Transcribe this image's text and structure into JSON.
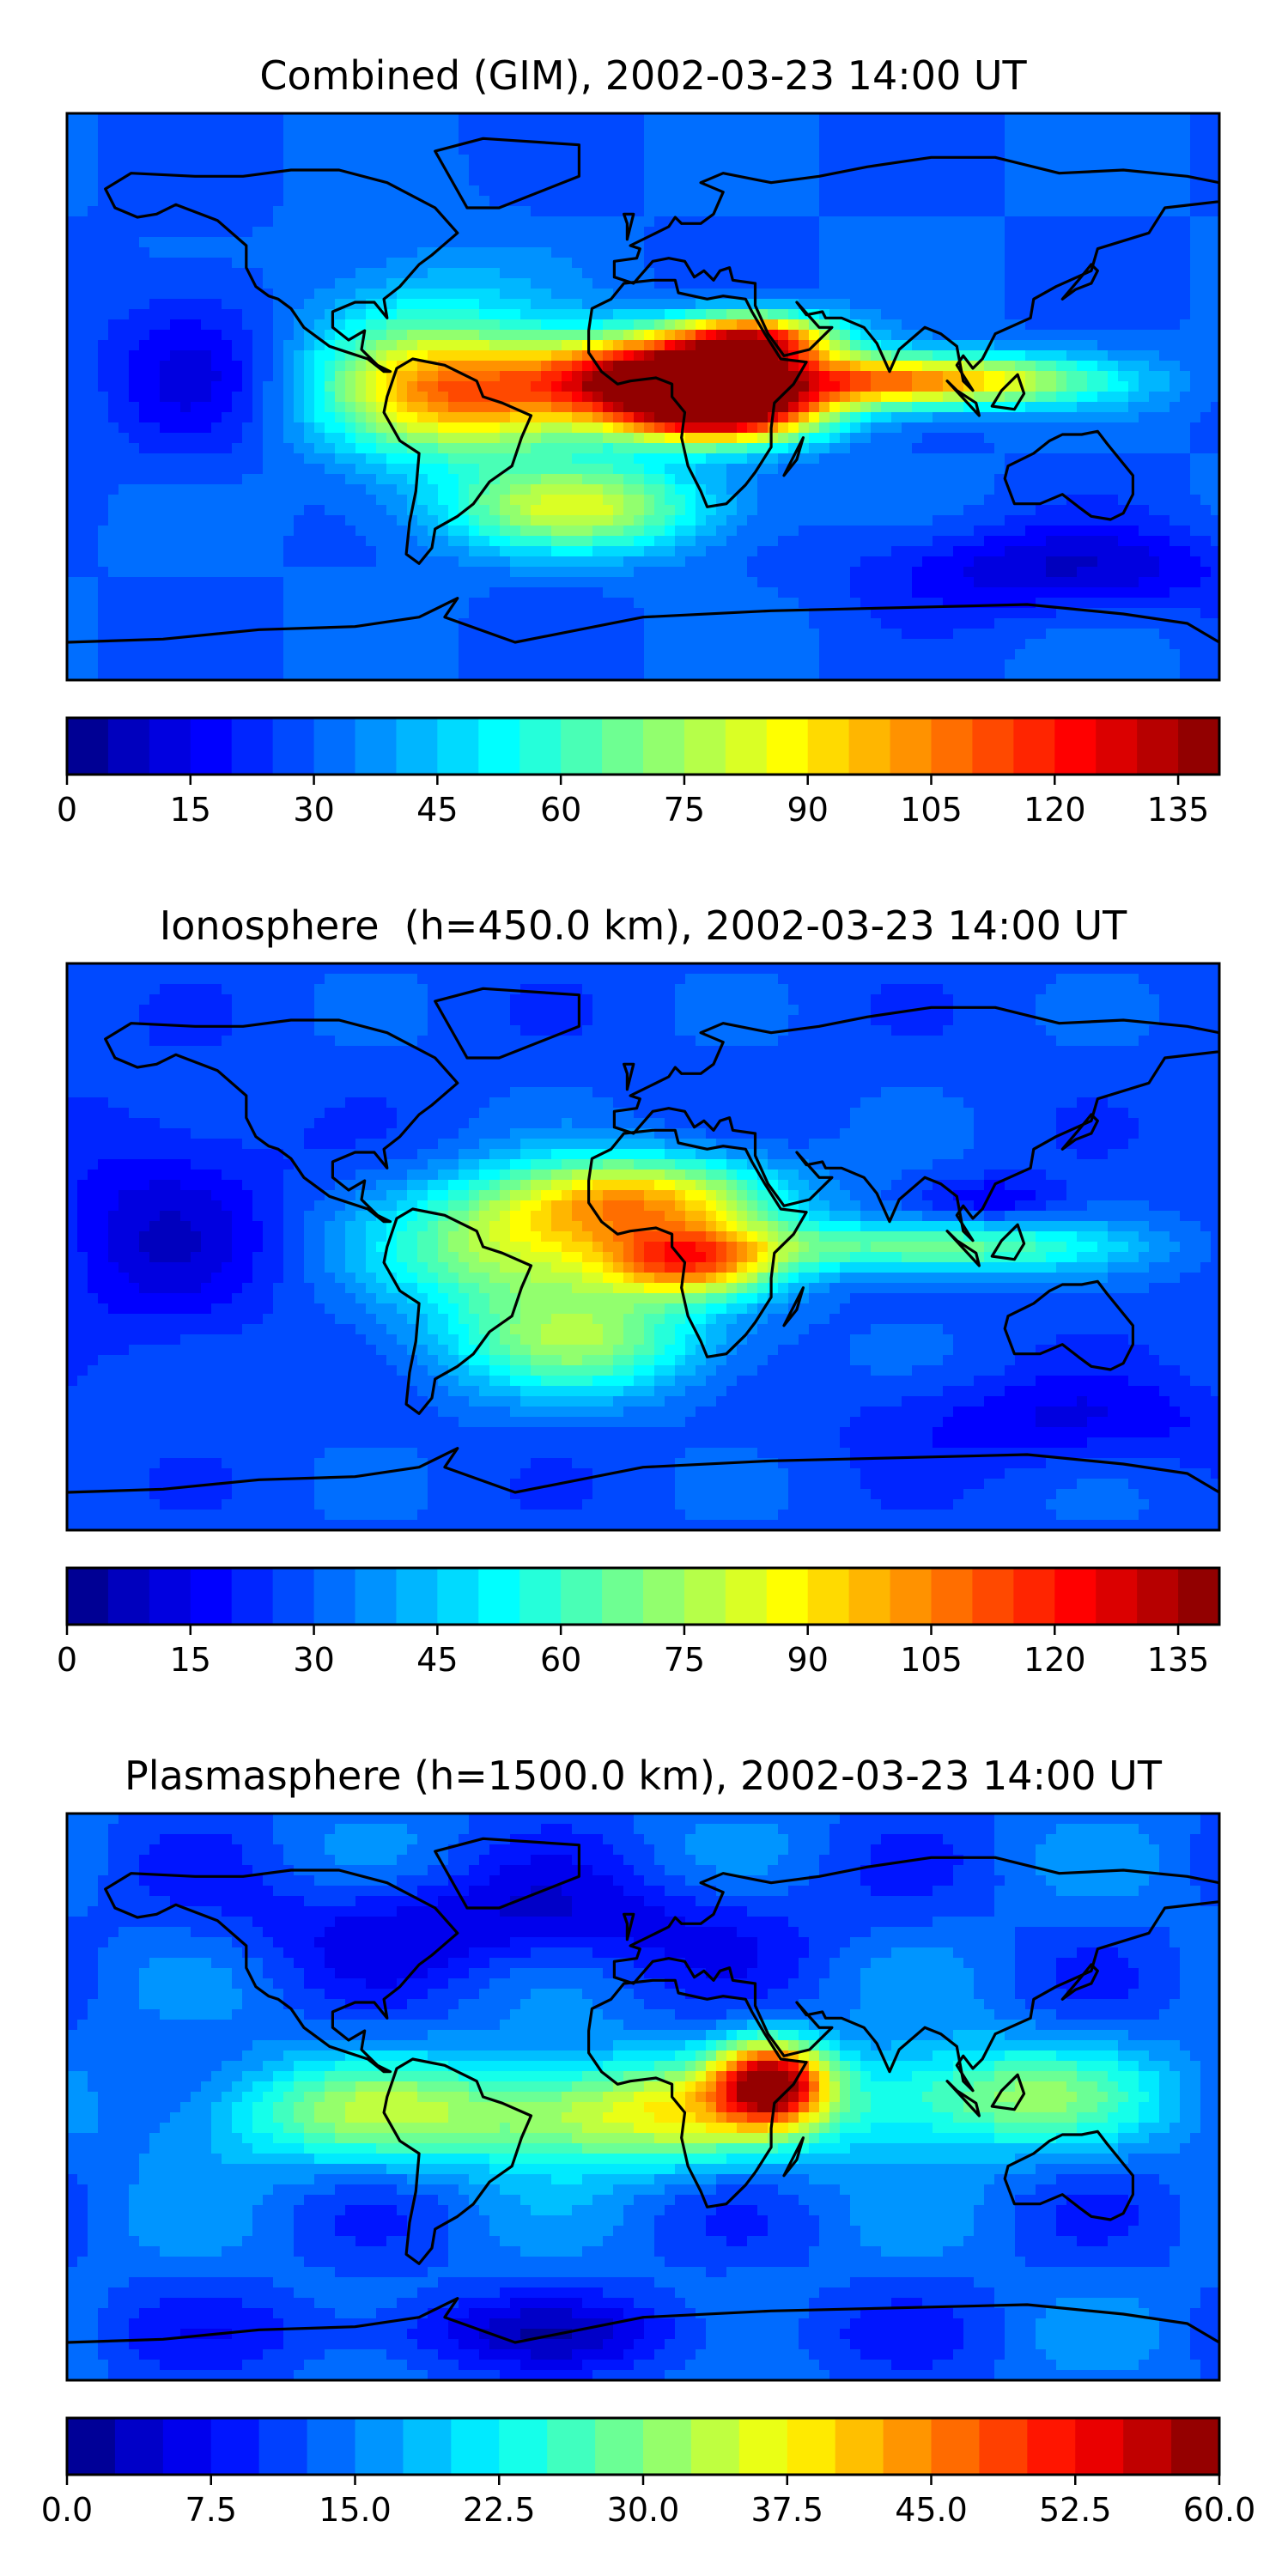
{
  "figure": {
    "colormap": [
      "#00007f",
      "#0000c8",
      "#0000ff",
      "#0040ff",
      "#0080ff",
      "#00bfff",
      "#00ffff",
      "#40ffbf",
      "#80ff80",
      "#bfff40",
      "#ffff00",
      "#ffbf00",
      "#ff8000",
      "#ff4000",
      "#ff0000",
      "#c00000",
      "#7f0000"
    ]
  },
  "chart_data": [
    {
      "type": "heatmap",
      "title": "Combined (GIM), 2002-03-23 14:00 UT",
      "xlim": [
        -180,
        180
      ],
      "ylim": [
        -90,
        90
      ],
      "colorbar": {
        "range": [
          0,
          140
        ],
        "levels": 28,
        "tick_values": [
          0,
          15,
          30,
          45,
          60,
          75,
          90,
          105,
          120,
          135
        ],
        "tick_labels": [
          "0",
          "15",
          "30",
          "45",
          "60",
          "75",
          "90",
          "105",
          "120",
          "135"
        ]
      },
      "background_value": 30,
      "features": [
        {
          "lon": 5,
          "lat": 7,
          "value": 125,
          "spread_lon": 25,
          "spread_lat": 9
        },
        {
          "lon": 35,
          "lat": 18,
          "value": 115,
          "spread_lon": 18,
          "spread_lat": 6
        },
        {
          "lon": 25,
          "lat": -5,
          "value": 130,
          "spread_lon": 22,
          "spread_lat": 7
        },
        {
          "lon": 80,
          "lat": 5,
          "value": 110,
          "spread_lon": 40,
          "spread_lat": 6
        },
        {
          "lon": -45,
          "lat": 0,
          "value": 85,
          "spread_lon": 30,
          "spread_lat": 12
        },
        {
          "lon": -20,
          "lat": -35,
          "value": 80,
          "spread_lon": 30,
          "spread_lat": 10
        },
        {
          "lon": -70,
          "lat": 10,
          "value": 65,
          "spread_lon": 25,
          "spread_lat": 20
        },
        {
          "lon": -140,
          "lat": 10,
          "value": 15,
          "spread_lon": 20,
          "spread_lat": 20
        },
        {
          "lon": 130,
          "lat": -55,
          "value": 10,
          "spread_lon": 40,
          "spread_lat": 10
        }
      ]
    },
    {
      "type": "heatmap",
      "title": "Ionosphere  (h=450.0 km), 2002-03-23 14:00 UT",
      "xlim": [
        -180,
        180
      ],
      "ylim": [
        -90,
        90
      ],
      "colorbar": {
        "range": [
          0,
          140
        ],
        "levels": 28,
        "tick_values": [
          0,
          15,
          30,
          45,
          60,
          75,
          90,
          105,
          120,
          135
        ],
        "tick_labels": [
          "0",
          "15",
          "30",
          "45",
          "60",
          "75",
          "90",
          "105",
          "120",
          "135"
        ]
      },
      "background_value": 28,
      "features": [
        {
          "lon": 0,
          "lat": 15,
          "value": 90,
          "spread_lon": 30,
          "spread_lat": 10
        },
        {
          "lon": 15,
          "lat": -5,
          "value": 95,
          "spread_lon": 20,
          "spread_lat": 8
        },
        {
          "lon": -40,
          "lat": 0,
          "value": 75,
          "spread_lon": 30,
          "spread_lat": 14
        },
        {
          "lon": -20,
          "lat": -30,
          "value": 70,
          "spread_lon": 30,
          "spread_lat": 12
        },
        {
          "lon": 90,
          "lat": 0,
          "value": 70,
          "spread_lon": 40,
          "spread_lat": 6
        },
        {
          "lon": 110,
          "lat": 15,
          "value": 15,
          "spread_lon": 15,
          "spread_lat": 5
        },
        {
          "lon": -150,
          "lat": 5,
          "value": 12,
          "spread_lon": 25,
          "spread_lat": 25
        },
        {
          "lon": 130,
          "lat": -55,
          "value": 15,
          "spread_lon": 40,
          "spread_lat": 10
        }
      ]
    },
    {
      "type": "heatmap",
      "title": "Plasmasphere (h=1500.0 km), 2002-03-23 14:00 UT",
      "xlim": [
        -180,
        180
      ],
      "ylim": [
        -90,
        90
      ],
      "colorbar": {
        "range": [
          0,
          60
        ],
        "levels": 24,
        "tick_values": [
          0,
          7.5,
          15,
          22.5,
          30,
          37.5,
          45,
          52.5,
          60
        ],
        "tick_labels": [
          "0.0",
          "7.5",
          "15.0",
          "22.5",
          "30.0",
          "37.5",
          "45.0",
          "52.5",
          "60.0"
        ]
      },
      "background_value": 13,
      "features": [
        {
          "lon": 40,
          "lat": 5,
          "value": 52,
          "spread_lon": 12,
          "spread_lat": 9
        },
        {
          "lon": 0,
          "lat": -5,
          "value": 36,
          "spread_lon": 40,
          "spread_lat": 12
        },
        {
          "lon": -90,
          "lat": -5,
          "value": 28,
          "spread_lon": 40,
          "spread_lat": 12
        },
        {
          "lon": 110,
          "lat": 0,
          "value": 30,
          "spread_lon": 35,
          "spread_lat": 12
        },
        {
          "lon": -40,
          "lat": 55,
          "value": 5,
          "spread_lon": 60,
          "spread_lat": 12
        },
        {
          "lon": -40,
          "lat": -75,
          "value": 6,
          "spread_lon": 60,
          "spread_lat": 8
        }
      ]
    }
  ]
}
